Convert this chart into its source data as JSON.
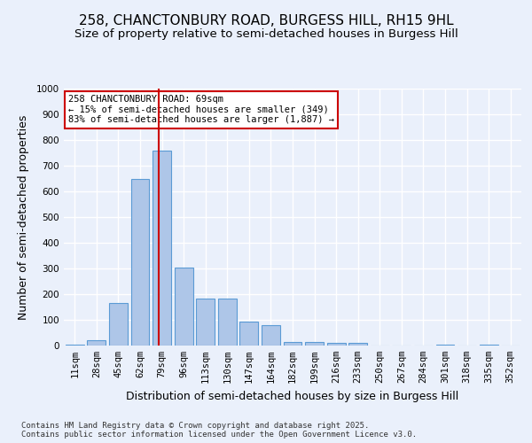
{
  "title1": "258, CHANCTONBURY ROAD, BURGESS HILL, RH15 9HL",
  "title2": "Size of property relative to semi-detached houses in Burgess Hill",
  "xlabel": "Distribution of semi-detached houses by size in Burgess Hill",
  "ylabel": "Number of semi-detached properties",
  "bins": [
    "11sqm",
    "28sqm",
    "45sqm",
    "62sqm",
    "79sqm",
    "96sqm",
    "113sqm",
    "130sqm",
    "147sqm",
    "164sqm",
    "182sqm",
    "199sqm",
    "216sqm",
    "233sqm",
    "250sqm",
    "267sqm",
    "284sqm",
    "301sqm",
    "318sqm",
    "335sqm",
    "352sqm"
  ],
  "values": [
    5,
    22,
    165,
    648,
    757,
    305,
    182,
    182,
    92,
    80,
    15,
    15,
    12,
    12,
    0,
    0,
    0,
    5,
    0,
    5,
    0
  ],
  "bar_color": "#aec6e8",
  "bar_edge_color": "#5b9bd5",
  "vline_x": 3.85,
  "vline_color": "#cc0000",
  "annotation_text": "258 CHANCTONBURY ROAD: 69sqm\n← 15% of semi-detached houses are smaller (349)\n83% of semi-detached houses are larger (1,887) →",
  "annotation_box_color": "#ffffff",
  "annotation_box_edge": "#cc0000",
  "footnote": "Contains HM Land Registry data © Crown copyright and database right 2025.\nContains public sector information licensed under the Open Government Licence v3.0.",
  "ylim": [
    0,
    1000
  ],
  "yticks": [
    0,
    100,
    200,
    300,
    400,
    500,
    600,
    700,
    800,
    900,
    1000
  ],
  "bg_color": "#eaf0fb",
  "plot_bg_color": "#eaf0fb",
  "grid_color": "#ffffff",
  "title_fontsize": 11,
  "subtitle_fontsize": 9.5,
  "tick_fontsize": 7.5,
  "label_fontsize": 9
}
